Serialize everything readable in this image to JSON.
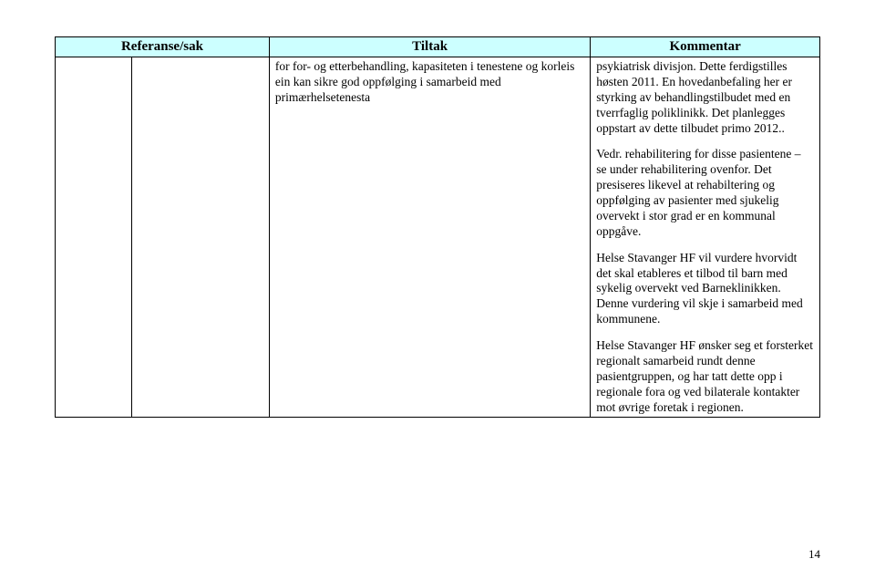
{
  "headers": {
    "referanse": "Referanse/sak",
    "tiltak": "Tiltak",
    "kommentar": "Kommentar"
  },
  "row": {
    "refA": "",
    "refB": "",
    "tiltak": "for for- og etterbehandling, kapasiteten i tenestene og korleis ein kan sikre god oppfølging i samarbeid med primærhelsetenesta",
    "kommentar": {
      "p1": "psykiatrisk divisjon. Dette ferdigstilles høsten 2011. En hovedanbefaling her er styrking av behandlingstilbudet med en tverrfaglig poliklinikk. Det planlegges oppstart av dette tilbudet primo 2012..",
      "p2": "Vedr. rehabilitering for disse pasientene – se under rehabilitering ovenfor. Det presiseres likevel at rehabiltering og oppfølging av pasienter med sjukelig overvekt i stor grad er en kommunal oppgåve.",
      "p3": "Helse Stavanger HF vil vurdere hvorvidt det skal etableres et tilbod til barn med sykelig overvekt ved Barneklinikken. Denne vurdering vil skje i samarbeid med kommunene.",
      "p4": "Helse Stavanger HF ønsker seg et forsterket regionalt samarbeid rundt denne pasientgruppen, og har tatt dette opp i regionale fora og ved bilaterale kontakter mot øvrige foretak i regionen."
    }
  },
  "pageNumber": "14",
  "colors": {
    "headerBg": "#ccffff",
    "border": "#000000",
    "text": "#000000",
    "pageBg": "#ffffff"
  }
}
